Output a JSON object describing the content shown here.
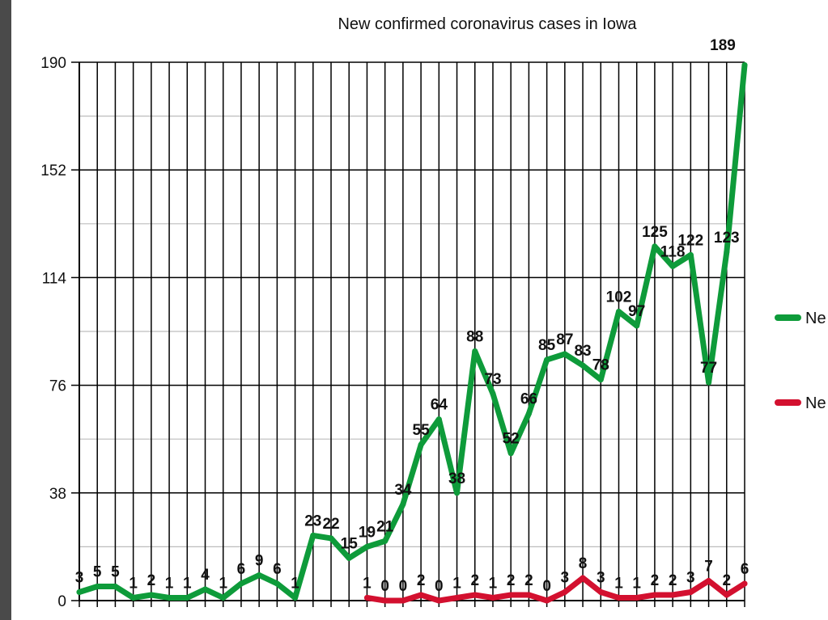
{
  "chart_data": {
    "type": "line",
    "title": "New confirmed coronavirus cases in Iowa",
    "ylim": [
      0,
      190
    ],
    "yticks": [
      "0",
      "38",
      "76",
      "114",
      "152",
      "190"
    ],
    "grid": true,
    "legend_position": "right",
    "max_label": "189",
    "series": [
      {
        "name": "Ne",
        "color": "#0e9b3a",
        "values": [
          3,
          5,
          5,
          1,
          2,
          1,
          1,
          4,
          1,
          6,
          9,
          6,
          1,
          23,
          22,
          15,
          19,
          21,
          34,
          55,
          64,
          38,
          88,
          73,
          52,
          66,
          85,
          87,
          83,
          78,
          102,
          97,
          125,
          118,
          122,
          77,
          123,
          189
        ],
        "labels": [
          "3",
          "5",
          "5",
          "1",
          "2",
          "1",
          "1",
          "4",
          "1",
          "6",
          "9",
          "6",
          "1",
          "23",
          "22",
          "15",
          "19",
          "21",
          "34",
          "55",
          "64",
          "38",
          "88",
          "73",
          "52",
          "66",
          "85",
          "87",
          "83",
          "78",
          "102",
          "97",
          "125",
          "118",
          "122",
          "77",
          "123",
          ""
        ]
      },
      {
        "name": "Ne",
        "color": "#d3102f",
        "start_index": 16,
        "values": [
          1,
          0,
          0,
          2,
          0,
          1,
          2,
          1,
          2,
          2,
          0,
          3,
          8,
          3,
          1,
          1,
          2,
          2,
          3,
          7,
          2,
          6
        ],
        "labels": [
          "1",
          "0",
          "0",
          "2",
          "0",
          "1",
          "2",
          "1",
          "2",
          "2",
          "0",
          "3",
          "8",
          "3",
          "1",
          "1",
          "2",
          "2",
          "3",
          "7",
          "2",
          "6"
        ]
      }
    ]
  }
}
